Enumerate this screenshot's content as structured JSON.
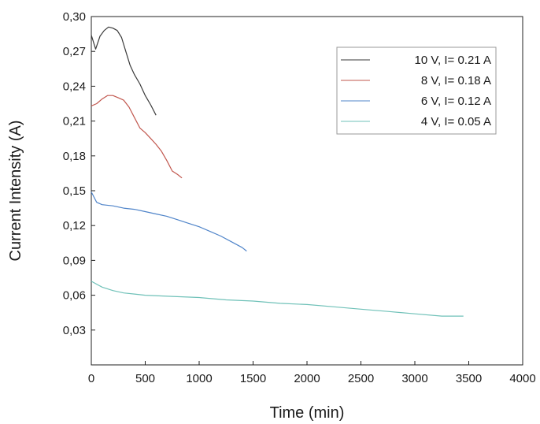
{
  "chart_data": {
    "type": "line",
    "title": "",
    "xlabel": "Time (min)",
    "ylabel": "Current Intensity (A)",
    "xlim": [
      0,
      4000
    ],
    "ylim": [
      0.0,
      0.3
    ],
    "x_ticks": [
      "0",
      "500",
      "1000",
      "1500",
      "2000",
      "2500",
      "3000",
      "3500",
      "4000"
    ],
    "y_ticks": [
      "0,03",
      "0,06",
      "0,09",
      "0,12",
      "0,15",
      "0,18",
      "0,21",
      "0,24",
      "0,27",
      "0,30"
    ],
    "grid": false,
    "legend_position": "top-right",
    "series": [
      {
        "name": "10 V, I= 0.21 A",
        "color": "#3a3a3a",
        "x": [
          0,
          40,
          80,
          120,
          160,
          200,
          240,
          280,
          320,
          360,
          400,
          450,
          500,
          550,
          600
        ],
        "y": [
          0.284,
          0.272,
          0.283,
          0.288,
          0.291,
          0.29,
          0.288,
          0.282,
          0.27,
          0.258,
          0.25,
          0.242,
          0.232,
          0.224,
          0.215
        ]
      },
      {
        "name": "8 V, I= 0.18 A",
        "color": "#c1574e",
        "x": [
          0,
          50,
          100,
          150,
          200,
          250,
          300,
          350,
          400,
          450,
          500,
          550,
          600,
          650,
          700,
          750,
          800,
          840
        ],
        "y": [
          0.223,
          0.225,
          0.229,
          0.232,
          0.232,
          0.23,
          0.228,
          0.222,
          0.213,
          0.204,
          0.2,
          0.195,
          0.19,
          0.184,
          0.176,
          0.167,
          0.164,
          0.161
        ]
      },
      {
        "name": "6 V, I= 0.12 A",
        "color": "#4f84c9",
        "x": [
          0,
          50,
          100,
          200,
          300,
          400,
          500,
          600,
          700,
          800,
          900,
          1000,
          1100,
          1200,
          1300,
          1400,
          1440
        ],
        "y": [
          0.149,
          0.14,
          0.138,
          0.137,
          0.135,
          0.134,
          0.132,
          0.13,
          0.128,
          0.125,
          0.122,
          0.119,
          0.115,
          0.111,
          0.106,
          0.101,
          0.098
        ]
      },
      {
        "name": "4 V, I= 0.05 A",
        "color": "#6fc1b8",
        "x": [
          0,
          100,
          200,
          300,
          400,
          500,
          750,
          1000,
          1250,
          1500,
          1750,
          2000,
          2250,
          2500,
          2750,
          3000,
          3250,
          3450
        ],
        "y": [
          0.072,
          0.067,
          0.064,
          0.062,
          0.061,
          0.06,
          0.059,
          0.058,
          0.056,
          0.055,
          0.053,
          0.052,
          0.05,
          0.048,
          0.046,
          0.044,
          0.042,
          0.042
        ]
      }
    ]
  }
}
